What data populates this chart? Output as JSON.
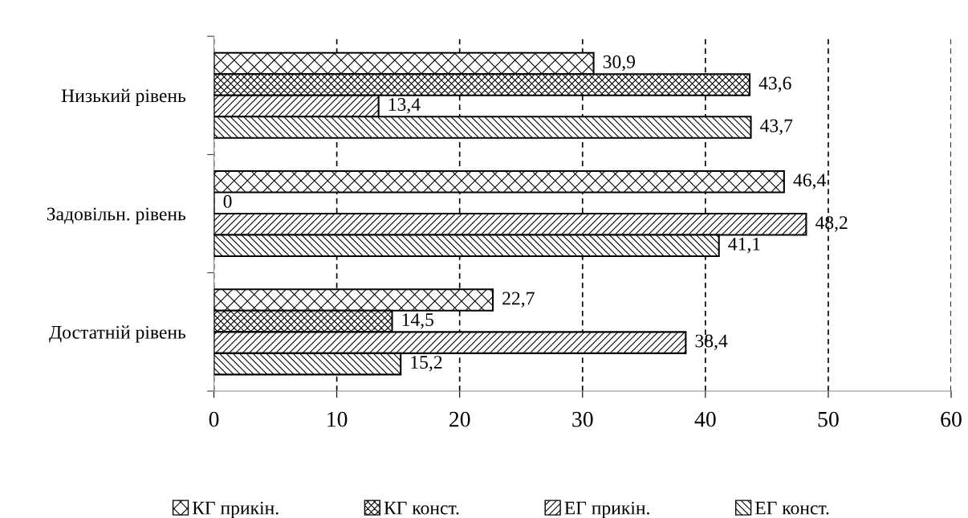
{
  "chart_data": {
    "type": "bar",
    "orientation": "horizontal",
    "categories": [
      "Низький рівень",
      "Задовільн. рівень",
      "Достатній рівень"
    ],
    "series": [
      {
        "name": "КГ прикін.",
        "color": "#000000",
        "values": [
          30.9,
          46.4,
          22.7
        ],
        "value_labels": [
          "30,9",
          "46,4",
          "22,7"
        ]
      },
      {
        "name": "КГ конст.",
        "color": "#000000",
        "values": [
          43.6,
          0,
          14.5
        ],
        "value_labels": [
          "43,6",
          "0",
          "14,5"
        ]
      },
      {
        "name": "ЕГ прикін.",
        "color": "#000000",
        "values": [
          13.4,
          48.2,
          38.4
        ],
        "value_labels": [
          "13,4",
          "48,2",
          "38,4"
        ]
      },
      {
        "name": "ЕГ конст.",
        "color": "#000000",
        "values": [
          43.7,
          41.1,
          15.2
        ],
        "value_labels": [
          "43,7",
          "41,1",
          "15,2"
        ]
      }
    ],
    "xlim": [
      0,
      60
    ],
    "xticks": [
      0,
      10,
      20,
      30,
      40,
      50,
      60
    ],
    "grid": "x",
    "line_style": "dashed",
    "legend": "bottom"
  }
}
